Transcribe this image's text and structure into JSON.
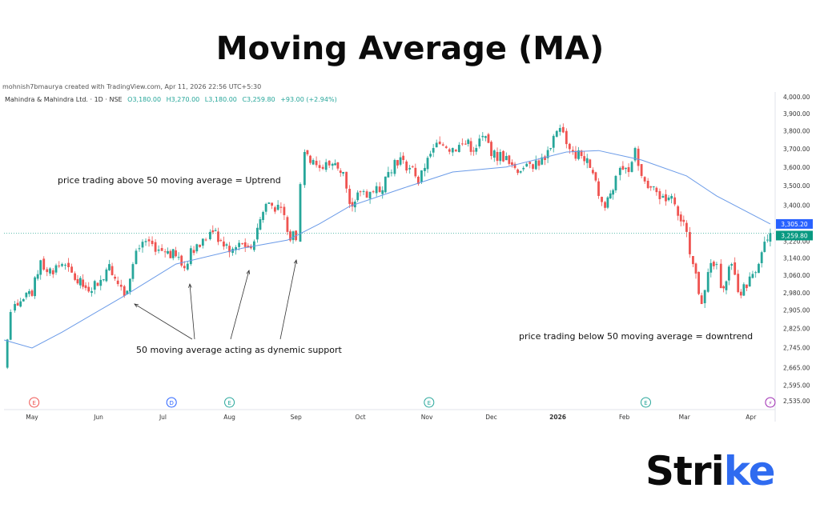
{
  "title": "Moving Average (MA)",
  "credit": "mohnish7bmaurya created with TradingView.com, Apr 11, 2026 22:56 UTC+5:30",
  "legend": {
    "symbol": "Mahindra & Mahindra Ltd. · 1D · NSE",
    "open": "O3,180.00",
    "high": "H3,270.00",
    "low": "L3,180.00",
    "close": "C3,259.80",
    "change": "+93.00 (+2.94%)"
  },
  "colors": {
    "up": "#26a69a",
    "down": "#ef5350",
    "ma": "#6b9be8",
    "ma_label": "#2962ff",
    "price_label": "#089981",
    "brand_accent": "#2f6bf0"
  },
  "chart_data": {
    "type": "candlestick",
    "y_scale": "log",
    "ylim": [
      2500,
      4030
    ],
    "y_ticks": [
      "4,000.00",
      "3,900.00",
      "3,800.00",
      "3,700.00",
      "3,600.00",
      "3,500.00",
      "3,400.00",
      "3,220.00",
      "3,140.00",
      "3,060.00",
      "2,980.00",
      "2,905.00",
      "2,825.00",
      "2,745.00",
      "2,665.00",
      "2,595.00",
      "2,535.00"
    ],
    "x_ticks": [
      {
        "label": "May",
        "date": "2025-05-01"
      },
      {
        "label": "Jun",
        "date": "2025-06-01"
      },
      {
        "label": "Jul",
        "date": "2025-07-01"
      },
      {
        "label": "Aug",
        "date": "2025-08-01"
      },
      {
        "label": "Sep",
        "date": "2025-09-01"
      },
      {
        "label": "Oct",
        "date": "2025-10-01"
      },
      {
        "label": "Nov",
        "date": "2025-11-01"
      },
      {
        "label": "Dec",
        "date": "2025-12-01"
      },
      {
        "label": "2026",
        "date": "2026-01-01"
      },
      {
        "label": "Feb",
        "date": "2026-02-01"
      },
      {
        "label": "Mar",
        "date": "2026-03-01"
      },
      {
        "label": "Apr",
        "date": "2026-04-01"
      }
    ],
    "price_path": [
      [
        "2025-04-18",
        2663
      ],
      [
        "2025-04-21",
        2896
      ],
      [
        "2025-04-23",
        2931
      ],
      [
        "2025-05-01",
        2967
      ],
      [
        "2025-05-05",
        3130
      ],
      [
        "2025-05-08",
        3075
      ],
      [
        "2025-05-15",
        3112
      ],
      [
        "2025-05-21",
        3039
      ],
      [
        "2025-05-26",
        3002
      ],
      [
        "2025-06-02",
        3039
      ],
      [
        "2025-06-06",
        3112
      ],
      [
        "2025-06-10",
        3020
      ],
      [
        "2025-06-13",
        2967
      ],
      [
        "2025-06-17",
        3112
      ],
      [
        "2025-06-20",
        3187
      ],
      [
        "2025-06-26",
        3207
      ],
      [
        "2025-07-02",
        3168
      ],
      [
        "2025-07-07",
        3149
      ],
      [
        "2025-07-11",
        3093
      ],
      [
        "2025-07-14",
        3187
      ],
      [
        "2025-07-21",
        3226
      ],
      [
        "2025-07-23",
        3266
      ],
      [
        "2025-07-28",
        3226
      ],
      [
        "2025-08-01",
        3168
      ],
      [
        "2025-08-07",
        3207
      ],
      [
        "2025-08-11",
        3187
      ],
      [
        "2025-08-14",
        3286
      ],
      [
        "2025-08-18",
        3406
      ],
      [
        "2025-08-25",
        3386
      ],
      [
        "2025-08-28",
        3266
      ],
      [
        "2025-09-01",
        3226
      ],
      [
        "2025-09-03",
        3509
      ],
      [
        "2025-09-05",
        3682
      ],
      [
        "2025-09-09",
        3638
      ],
      [
        "2025-09-12",
        3595
      ],
      [
        "2025-09-18",
        3617
      ],
      [
        "2025-09-23",
        3573
      ],
      [
        "2025-09-26",
        3406
      ],
      [
        "2025-10-01",
        3467
      ],
      [
        "2025-10-07",
        3467
      ],
      [
        "2025-10-10",
        3467
      ],
      [
        "2025-10-14",
        3573
      ],
      [
        "2025-10-17",
        3638
      ],
      [
        "2025-10-21",
        3638
      ],
      [
        "2025-10-24",
        3595
      ],
      [
        "2025-10-28",
        3509
      ],
      [
        "2025-10-31",
        3595
      ],
      [
        "2025-11-04",
        3704
      ],
      [
        "2025-11-07",
        3726
      ],
      [
        "2025-11-13",
        3704
      ],
      [
        "2025-11-19",
        3726
      ],
      [
        "2025-11-24",
        3704
      ],
      [
        "2025-11-27",
        3772
      ],
      [
        "2025-12-01",
        3660
      ],
      [
        "2025-12-08",
        3660
      ],
      [
        "2025-12-12",
        3595
      ],
      [
        "2025-12-16",
        3595
      ],
      [
        "2025-12-19",
        3617
      ],
      [
        "2025-12-26",
        3638
      ],
      [
        "2025-12-30",
        3772
      ],
      [
        "2026-01-02",
        3817
      ],
      [
        "2026-01-05",
        3726
      ],
      [
        "2026-01-08",
        3682
      ],
      [
        "2026-01-12",
        3660
      ],
      [
        "2026-01-16",
        3595
      ],
      [
        "2026-01-20",
        3447
      ],
      [
        "2026-01-23",
        3386
      ],
      [
        "2026-01-28",
        3552
      ],
      [
        "2026-01-30",
        3595
      ],
      [
        "2026-02-03",
        3573
      ],
      [
        "2026-02-06",
        3704
      ],
      [
        "2026-02-09",
        3552
      ],
      [
        "2026-02-12",
        3488
      ],
      [
        "2026-02-16",
        3467
      ],
      [
        "2026-02-19",
        3447
      ],
      [
        "2026-02-23",
        3447
      ],
      [
        "2026-02-26",
        3346
      ],
      [
        "2026-03-02",
        3266
      ],
      [
        "2026-03-05",
        3112
      ],
      [
        "2026-03-09",
        2931
      ],
      [
        "2026-03-12",
        3075
      ],
      [
        "2026-03-16",
        3112
      ],
      [
        "2026-03-18",
        3002
      ],
      [
        "2026-03-23",
        3112
      ],
      [
        "2026-03-26",
        2984
      ],
      [
        "2026-03-30",
        3002
      ],
      [
        "2026-04-06",
        3168
      ],
      [
        "2026-04-10",
        3259.8
      ]
    ],
    "ma50_path": [
      [
        "2025-04-18",
        2777
      ],
      [
        "2025-05-01",
        2744
      ],
      [
        "2025-05-15",
        2810
      ],
      [
        "2025-06-13",
        2967
      ],
      [
        "2025-07-07",
        3112
      ],
      [
        "2025-08-07",
        3187
      ],
      [
        "2025-08-28",
        3226
      ],
      [
        "2025-09-12",
        3306
      ],
      [
        "2025-09-26",
        3394
      ],
      [
        "2025-10-21",
        3488
      ],
      [
        "2025-11-13",
        3573
      ],
      [
        "2025-12-08",
        3600
      ],
      [
        "2026-01-05",
        3682
      ],
      [
        "2026-01-20",
        3690
      ],
      [
        "2026-02-09",
        3638
      ],
      [
        "2026-03-02",
        3552
      ],
      [
        "2026-03-16",
        3447
      ],
      [
        "2026-04-10",
        3305.2
      ]
    ],
    "last_price_label": "3,259.80",
    "ma_label": "3,305.20",
    "event_markers": [
      {
        "date": "2025-05-02",
        "glyph": "E",
        "color": "#ef5350"
      },
      {
        "date": "2025-07-05",
        "glyph": "D",
        "color": "#2962ff"
      },
      {
        "date": "2025-08-01",
        "glyph": "E",
        "color": "#26a69a"
      },
      {
        "date": "2025-11-02",
        "glyph": "E",
        "color": "#26a69a"
      },
      {
        "date": "2026-02-11",
        "glyph": "E",
        "color": "#26a69a"
      },
      {
        "date": "2026-04-10",
        "glyph": "⚡",
        "color": "#9c27b0"
      }
    ],
    "annotations": {
      "uptrend": "price trading above 50 moving average = Uptrend",
      "support": "50 moving average acting as dynemic support",
      "downtrend": "price trading below 50 moving average = downtrend"
    }
  },
  "logo": {
    "text_main": "Stri",
    "text_accent": "ke"
  }
}
